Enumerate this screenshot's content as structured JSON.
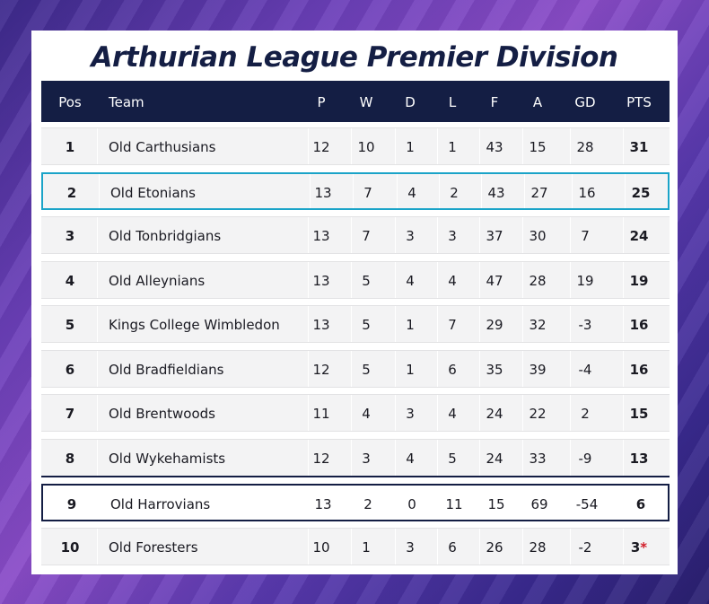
{
  "title": "Arthurian League Premier Division",
  "columns": [
    "Pos",
    "Team",
    "P",
    "W",
    "D",
    "L",
    "F",
    "A",
    "GD",
    "PTS"
  ],
  "rows": [
    {
      "pos": "1",
      "team": "Old Carthusians",
      "p": "12",
      "w": "10",
      "d": "1",
      "l": "1",
      "f": "43",
      "a": "15",
      "gd": "28",
      "pts": "31",
      "mark": ""
    },
    {
      "pos": "2",
      "team": "Old Etonians",
      "p": "13",
      "w": "7",
      "d": "4",
      "l": "2",
      "f": "43",
      "a": "27",
      "gd": "16",
      "pts": "25",
      "mark": ""
    },
    {
      "pos": "3",
      "team": "Old Tonbridgians",
      "p": "13",
      "w": "7",
      "d": "3",
      "l": "3",
      "f": "37",
      "a": "30",
      "gd": "7",
      "pts": "24",
      "mark": ""
    },
    {
      "pos": "4",
      "team": "Old Alleynians",
      "p": "13",
      "w": "5",
      "d": "4",
      "l": "4",
      "f": "47",
      "a": "28",
      "gd": "19",
      "pts": "19",
      "mark": ""
    },
    {
      "pos": "5",
      "team": "Kings College Wimbledon",
      "p": "13",
      "w": "5",
      "d": "1",
      "l": "7",
      "f": "29",
      "a": "32",
      "gd": "-3",
      "pts": "16",
      "mark": ""
    },
    {
      "pos": "6",
      "team": "Old Bradfieldians",
      "p": "12",
      "w": "5",
      "d": "1",
      "l": "6",
      "f": "35",
      "a": "39",
      "gd": "-4",
      "pts": "16",
      "mark": ""
    },
    {
      "pos": "7",
      "team": "Old Brentwoods",
      "p": "11",
      "w": "4",
      "d": "3",
      "l": "4",
      "f": "24",
      "a": "22",
      "gd": "2",
      "pts": "15",
      "mark": ""
    },
    {
      "pos": "8",
      "team": "Old Wykehamists",
      "p": "12",
      "w": "3",
      "d": "4",
      "l": "5",
      "f": "24",
      "a": "33",
      "gd": "-9",
      "pts": "13",
      "mark": ""
    },
    {
      "pos": "9",
      "team": "Old Harrovians",
      "p": "13",
      "w": "2",
      "d": "0",
      "l": "11",
      "f": "15",
      "a": "69",
      "gd": "-54",
      "pts": "6",
      "mark": ""
    },
    {
      "pos": "10",
      "team": "Old Foresters",
      "p": "10",
      "w": "1",
      "d": "3",
      "l": "6",
      "f": "26",
      "a": "28",
      "gd": "-2",
      "pts": "3",
      "mark": "*"
    }
  ],
  "colors": {
    "navy": "#141e44",
    "highlight_cyan": "#1aa3c8",
    "asterisk_red": "#d21e2a"
  }
}
